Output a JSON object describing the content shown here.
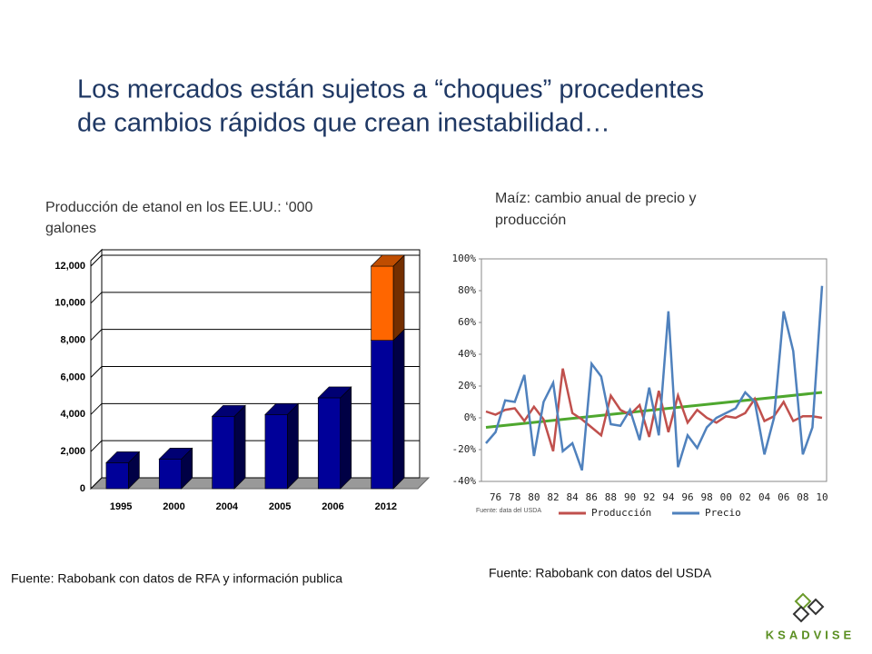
{
  "title": [
    "Los mercados están sujetos a “choques” procedentes",
    "de cambios rápidos que crean inestabilidad…"
  ],
  "logo": "KSADVISE",
  "chart_data": [
    {
      "type": "bar",
      "stacked": true,
      "title": [
        "Producción de etanol en los EE.UU.: ‘000",
        "galones"
      ],
      "categories": [
        "1995",
        "2000",
        "2004",
        "2005",
        "2006",
        "2012"
      ],
      "series": [
        {
          "color": "#000099",
          "values": [
            1400,
            1600,
            3900,
            4000,
            4900,
            8000
          ]
        },
        {
          "color": "#ff6600",
          "values": [
            null,
            null,
            null,
            null,
            null,
            4000
          ]
        }
      ],
      "ylim": [
        0,
        12000
      ],
      "yticks": [
        0,
        {
          "value": 2000,
          "label": "2,000"
        },
        {
          "value": 4000,
          "label": "4,000"
        },
        {
          "value": 6000,
          "label": "6,000"
        },
        {
          "value": 8000,
          "label": "8,000"
        },
        {
          "value": 10000,
          "label": "10,000"
        },
        {
          "value": 12000,
          "label": "12,000"
        }
      ],
      "grid": true,
      "source": "Fuente: Rabobank con datos de RFA y información publica"
    },
    {
      "type": "line",
      "title": [
        "Maíz: cambio anual de precio y",
        "producción"
      ],
      "categories": [
        null,
        "76",
        null,
        "78",
        null,
        "80",
        null,
        "82",
        null,
        "84",
        null,
        "86",
        null,
        "88",
        null,
        "90",
        null,
        "92",
        null,
        "94",
        null,
        "96",
        null,
        "98",
        null,
        "00",
        null,
        "02",
        null,
        "04",
        null,
        "06",
        null,
        "08",
        null,
        "10"
      ],
      "series": [
        {
          "name": "Producción",
          "color": "#c0504d",
          "values": [
            4,
            2,
            5,
            6,
            -2,
            7,
            -1,
            -21,
            31,
            3,
            -1,
            -6,
            -11,
            14,
            5,
            2,
            8,
            -12,
            17,
            -9,
            14,
            -3,
            5,
            0,
            -3,
            1,
            0,
            3,
            12,
            -2,
            1,
            10,
            -2,
            1,
            1,
            0
          ]
        },
        {
          "name": "Precio",
          "color": "#4f81bd",
          "values": [
            -16,
            -9,
            11,
            10,
            27,
            -24,
            10,
            22,
            -21,
            -16,
            -33,
            34,
            26,
            -4,
            -5,
            5,
            -14,
            19,
            -11,
            67,
            -31,
            -11,
            -19,
            -6,
            0,
            3,
            6,
            16,
            10,
            -23,
            0,
            67,
            42,
            -23,
            -6,
            83
          ]
        }
      ],
      "trend_line": {
        "color": "#4ea72e",
        "start": -6,
        "end": 16
      },
      "ylim": [
        -40,
        100
      ],
      "yticks": [
        {
          "value": -40,
          "label": "-40%"
        },
        {
          "value": -20,
          "label": "-20%"
        },
        {
          "value": 0,
          "label": "0%"
        },
        {
          "value": 20,
          "label": "20%"
        },
        {
          "value": 40,
          "label": "40%"
        },
        {
          "value": 60,
          "label": "60%"
        },
        {
          "value": 80,
          "label": "80%"
        },
        {
          "value": 100,
          "label": "100%"
        }
      ],
      "note": "Fuente: data del USDA",
      "source": "Fuente: Rabobank con datos del USDA"
    }
  ]
}
